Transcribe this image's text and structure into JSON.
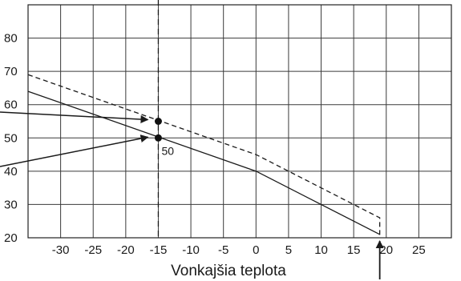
{
  "chart_data": {
    "type": "line",
    "title": "",
    "xlabel": "Vonkajšia teplota",
    "ylabel": "",
    "xlim": [
      -35,
      30
    ],
    "ylim": [
      20,
      90
    ],
    "x_ticks": [
      -30,
      -25,
      -20,
      -15,
      -10,
      -5,
      0,
      5,
      10,
      15,
      20,
      25
    ],
    "y_ticks": [
      20,
      30,
      40,
      50,
      60,
      70,
      80
    ],
    "grid": true,
    "series": [
      {
        "style": "solid",
        "x": [
          -35,
          0,
          19
        ],
        "y": [
          64,
          40,
          21
        ]
      },
      {
        "style": "dashed",
        "x": [
          -35,
          0,
          19,
          19
        ],
        "y": [
          69,
          45,
          26,
          20
        ]
      }
    ],
    "reference_line_x": -15,
    "points": [
      {
        "x": -15,
        "y": 55
      },
      {
        "x": -15,
        "y": 50,
        "label": "50"
      }
    ]
  }
}
